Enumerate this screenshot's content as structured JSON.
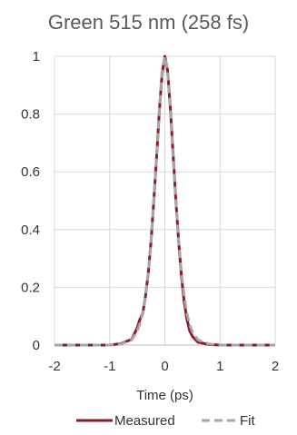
{
  "chart_data": {
    "type": "line",
    "title": "Green 515 nm (258 fs)",
    "xlabel": "Time (ps)",
    "ylabel": "",
    "xlim": [
      -2,
      2
    ],
    "ylim": [
      0,
      1
    ],
    "x_ticks": [
      -2,
      -1,
      0,
      1,
      2
    ],
    "y_ticks": [
      0,
      0.2,
      0.4,
      0.6,
      0.8,
      1
    ],
    "x_tick_labels": [
      "-2",
      "-1",
      "0",
      "1",
      "2"
    ],
    "y_tick_labels": [
      "0",
      "0.2",
      "0.4",
      "0.6",
      "0.8",
      "1"
    ],
    "grid": true,
    "legend_position": "bottom",
    "series": [
      {
        "name": "Measured",
        "color": "#8b1a2b",
        "style": "solid",
        "x": [
          -2,
          -1.5,
          -1,
          -0.8,
          -0.6,
          -0.5,
          -0.45,
          -0.4,
          -0.35,
          -0.3,
          -0.25,
          -0.2,
          -0.15,
          -0.1,
          -0.05,
          0,
          0.05,
          0.1,
          0.15,
          0.2,
          0.25,
          0.3,
          0.35,
          0.4,
          0.45,
          0.5,
          0.6,
          0.8,
          1,
          1.5,
          2
        ],
        "y": [
          0,
          0,
          0,
          0.005,
          0.02,
          0.06,
          0.09,
          0.11,
          0.17,
          0.25,
          0.36,
          0.5,
          0.65,
          0.81,
          0.94,
          1,
          0.95,
          0.82,
          0.66,
          0.5,
          0.36,
          0.24,
          0.15,
          0.09,
          0.05,
          0.03,
          0.01,
          0.002,
          0,
          0,
          0
        ]
      },
      {
        "name": "Fit",
        "color": "#a6a6a6",
        "style": "dashed",
        "x": [
          -2,
          -1.5,
          -1,
          -0.8,
          -0.6,
          -0.5,
          -0.45,
          -0.4,
          -0.35,
          -0.3,
          -0.25,
          -0.2,
          -0.15,
          -0.1,
          -0.05,
          0,
          0.05,
          0.1,
          0.15,
          0.2,
          0.25,
          0.3,
          0.35,
          0.4,
          0.45,
          0.5,
          0.6,
          0.8,
          1,
          1.5,
          2
        ],
        "y": [
          0,
          0,
          0,
          0.004,
          0.018,
          0.05,
          0.075,
          0.11,
          0.17,
          0.25,
          0.36,
          0.5,
          0.65,
          0.81,
          0.95,
          1,
          0.95,
          0.81,
          0.65,
          0.5,
          0.36,
          0.25,
          0.17,
          0.11,
          0.07,
          0.045,
          0.018,
          0.004,
          0,
          0,
          0
        ]
      }
    ]
  }
}
